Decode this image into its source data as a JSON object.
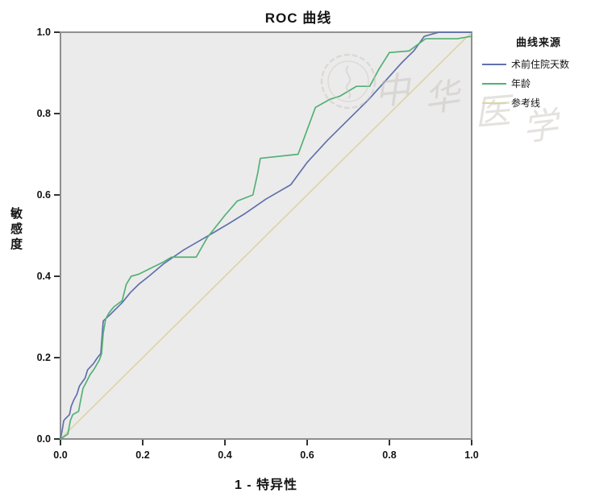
{
  "title": "ROC 曲线",
  "axes": {
    "x_label": "1 - 特异性",
    "y_label": "敏感度",
    "x_ticks": [
      "0.0",
      "0.2",
      "0.4",
      "0.6",
      "0.8",
      "1.0"
    ],
    "y_ticks": [
      "0.0",
      "0.2",
      "0.4",
      "0.6",
      "0.8",
      "1.0"
    ]
  },
  "legend": {
    "title": "曲线来源",
    "items": [
      {
        "label": "术前住院天数",
        "color": "#5f71ad"
      },
      {
        "label": "年龄",
        "color": "#53b175"
      },
      {
        "label": "参考线",
        "color": "#dcd5a8"
      }
    ]
  },
  "watermark": {
    "text": "中华医学"
  },
  "chart_data": {
    "type": "line",
    "title": "ROC 曲线",
    "xlabel": "1 - 特异性",
    "ylabel": "敏感度",
    "xlim": [
      0,
      1
    ],
    "ylim": [
      0,
      1
    ],
    "tick_values": [
      0,
      0.2,
      0.4,
      0.6,
      0.8,
      1.0
    ],
    "plot_background": "#ecebeb",
    "frame_color": "#8f8f8f",
    "legend_position": "right",
    "grid": false,
    "series": [
      {
        "name": "术前住院天数",
        "key": "preop-days",
        "color": "#5f71ad",
        "z": 2,
        "points": [
          [
            0,
            0
          ],
          [
            0.004,
            0.02
          ],
          [
            0.008,
            0.045
          ],
          [
            0.012,
            0.05
          ],
          [
            0.022,
            0.06
          ],
          [
            0.026,
            0.08
          ],
          [
            0.032,
            0.095
          ],
          [
            0.04,
            0.11
          ],
          [
            0.046,
            0.13
          ],
          [
            0.06,
            0.15
          ],
          [
            0.066,
            0.17
          ],
          [
            0.08,
            0.185
          ],
          [
            0.09,
            0.2
          ],
          [
            0.098,
            0.21
          ],
          [
            0.104,
            0.29
          ],
          [
            0.12,
            0.305
          ],
          [
            0.135,
            0.32
          ],
          [
            0.15,
            0.335
          ],
          [
            0.17,
            0.36
          ],
          [
            0.19,
            0.38
          ],
          [
            0.215,
            0.4
          ],
          [
            0.25,
            0.43
          ],
          [
            0.3,
            0.465
          ],
          [
            0.36,
            0.5
          ],
          [
            0.41,
            0.53
          ],
          [
            0.45,
            0.555
          ],
          [
            0.5,
            0.59
          ],
          [
            0.56,
            0.625
          ],
          [
            0.6,
            0.68
          ],
          [
            0.65,
            0.735
          ],
          [
            0.7,
            0.785
          ],
          [
            0.75,
            0.835
          ],
          [
            0.79,
            0.88
          ],
          [
            0.83,
            0.925
          ],
          [
            0.86,
            0.955
          ],
          [
            0.885,
            0.99
          ],
          [
            0.92,
            1.0
          ],
          [
            1.0,
            1.0
          ]
        ]
      },
      {
        "name": "年龄",
        "key": "age",
        "color": "#53b175",
        "z": 3,
        "points": [
          [
            0,
            0
          ],
          [
            0.018,
            0.012
          ],
          [
            0.024,
            0.045
          ],
          [
            0.03,
            0.06
          ],
          [
            0.044,
            0.068
          ],
          [
            0.05,
            0.1
          ],
          [
            0.055,
            0.125
          ],
          [
            0.063,
            0.14
          ],
          [
            0.072,
            0.158
          ],
          [
            0.082,
            0.172
          ],
          [
            0.095,
            0.195
          ],
          [
            0.1,
            0.21
          ],
          [
            0.104,
            0.26
          ],
          [
            0.11,
            0.295
          ],
          [
            0.118,
            0.31
          ],
          [
            0.13,
            0.325
          ],
          [
            0.15,
            0.34
          ],
          [
            0.16,
            0.38
          ],
          [
            0.172,
            0.4
          ],
          [
            0.19,
            0.405
          ],
          [
            0.22,
            0.42
          ],
          [
            0.25,
            0.435
          ],
          [
            0.27,
            0.447
          ],
          [
            0.33,
            0.447
          ],
          [
            0.357,
            0.495
          ],
          [
            0.4,
            0.55
          ],
          [
            0.43,
            0.585
          ],
          [
            0.468,
            0.6
          ],
          [
            0.48,
            0.655
          ],
          [
            0.486,
            0.69
          ],
          [
            0.578,
            0.7
          ],
          [
            0.62,
            0.815
          ],
          [
            0.655,
            0.835
          ],
          [
            0.68,
            0.843
          ],
          [
            0.72,
            0.867
          ],
          [
            0.752,
            0.867
          ],
          [
            0.775,
            0.91
          ],
          [
            0.8,
            0.95
          ],
          [
            0.848,
            0.954
          ],
          [
            0.888,
            0.984
          ],
          [
            0.965,
            0.984
          ],
          [
            1.0,
            0.99
          ]
        ]
      },
      {
        "name": "参考线",
        "key": "reference",
        "color": "#dcd5a8",
        "z": 1,
        "points": [
          [
            0,
            0
          ],
          [
            1,
            1
          ]
        ]
      }
    ]
  }
}
